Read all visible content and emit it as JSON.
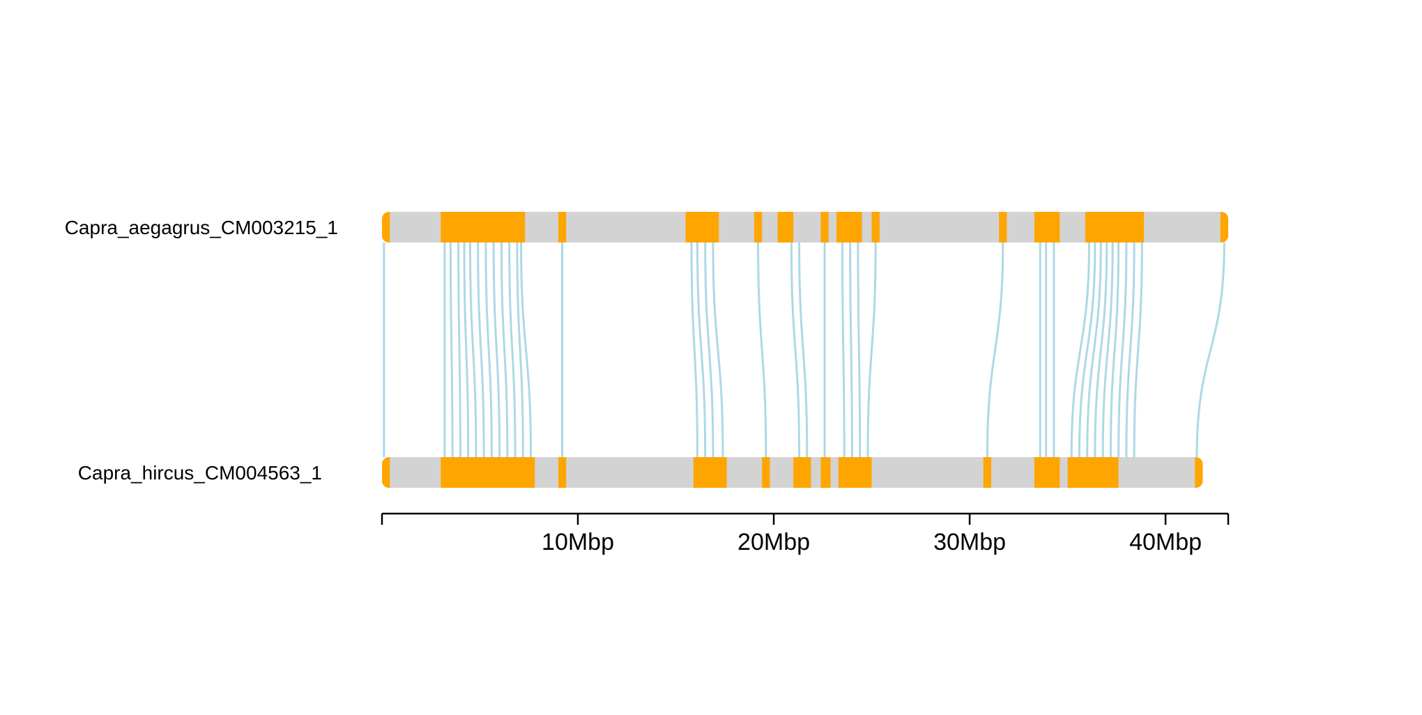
{
  "chart_data": {
    "type": "synteny",
    "colors": {
      "chromosome": "#d3d3d3",
      "block": "#ffa500",
      "link": "#add8e6",
      "axis": "#000000"
    },
    "axis": {
      "unit": "Mbp",
      "max_mbp": 43.2,
      "ticks": [
        {
          "value": 0,
          "label": ""
        },
        {
          "value": 10,
          "label": "10Mbp"
        },
        {
          "value": 20,
          "label": "20Mbp"
        },
        {
          "value": 30,
          "label": "30Mbp"
        },
        {
          "value": 40,
          "label": "40Mbp"
        }
      ]
    },
    "chromosomes": [
      {
        "name": "Capra_aegagrus_CM003215_1",
        "length_mbp": 43.2,
        "blocks": [
          [
            0,
            0.4
          ],
          [
            3.0,
            7.3
          ],
          [
            9.0,
            9.4
          ],
          [
            15.5,
            17.2
          ],
          [
            19.0,
            19.4
          ],
          [
            20.2,
            21.0
          ],
          [
            22.4,
            22.8
          ],
          [
            23.2,
            24.5
          ],
          [
            25.0,
            25.4
          ],
          [
            31.5,
            31.9
          ],
          [
            33.3,
            34.6
          ],
          [
            35.9,
            38.9
          ],
          [
            42.8,
            43.2
          ]
        ]
      },
      {
        "name": "Capra_hircus_CM004563_1",
        "length_mbp": 41.9,
        "blocks": [
          [
            0,
            0.4
          ],
          [
            3.0,
            7.8
          ],
          [
            9.0,
            9.4
          ],
          [
            15.9,
            17.6
          ],
          [
            19.4,
            19.8
          ],
          [
            21.0,
            21.9
          ],
          [
            22.4,
            22.9
          ],
          [
            23.3,
            25.0
          ],
          [
            30.7,
            31.1
          ],
          [
            33.3,
            34.6
          ],
          [
            35.0,
            37.6
          ],
          [
            41.5,
            41.9
          ]
        ]
      }
    ],
    "links": [
      [
        0.1,
        0.1
      ],
      [
        3.2,
        3.2
      ],
      [
        3.5,
        3.6
      ],
      [
        3.9,
        4.0
      ],
      [
        4.2,
        4.4
      ],
      [
        4.5,
        4.8
      ],
      [
        4.9,
        5.2
      ],
      [
        5.3,
        5.6
      ],
      [
        5.7,
        6.0
      ],
      [
        6.1,
        6.4
      ],
      [
        6.5,
        6.8
      ],
      [
        6.9,
        7.2
      ],
      [
        7.1,
        7.6
      ],
      [
        9.2,
        9.2
      ],
      [
        15.8,
        16.1
      ],
      [
        16.1,
        16.5
      ],
      [
        16.5,
        16.9
      ],
      [
        16.9,
        17.4
      ],
      [
        19.2,
        19.6
      ],
      [
        20.9,
        21.3
      ],
      [
        21.3,
        21.7
      ],
      [
        22.6,
        22.6
      ],
      [
        23.5,
        23.6
      ],
      [
        23.9,
        24.0
      ],
      [
        24.3,
        24.4
      ],
      [
        25.2,
        24.8
      ],
      [
        31.7,
        30.9
      ],
      [
        33.6,
        33.6
      ],
      [
        33.9,
        33.9
      ],
      [
        34.3,
        34.3
      ],
      [
        36.1,
        35.2
      ],
      [
        36.4,
        35.6
      ],
      [
        36.7,
        36.0
      ],
      [
        37.0,
        36.4
      ],
      [
        37.3,
        36.8
      ],
      [
        37.6,
        37.2
      ],
      [
        38.0,
        37.6
      ],
      [
        38.4,
        38.0
      ],
      [
        38.8,
        38.4
      ],
      [
        43.0,
        41.6
      ]
    ]
  }
}
